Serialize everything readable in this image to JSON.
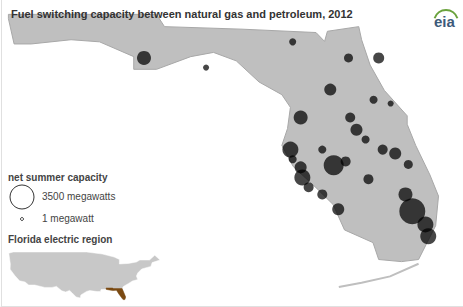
{
  "chart_data": {
    "type": "scatter",
    "title": "Fuel switching capacity between natural gas and petroleum, 2012",
    "xlim": [
      -87.73,
      -79.62
    ],
    "ylim": [
      24.1,
      31.34
    ],
    "tick_labels": false,
    "grid": false,
    "color": "#000000",
    "x": [
      -85.22,
      -84.13,
      -82.61,
      -81.63,
      -81.1,
      -81.95,
      -81.19,
      -80.89,
      -82.47,
      -81.49,
      -81.03,
      -80.81,
      -80.58,
      -81.68,
      -82.09,
      -82.65,
      -82.47,
      -82.44,
      -82.33,
      -82.61,
      -81.89,
      -82.09,
      -81.81,
      -81.33,
      -81.28,
      -80.63,
      -80.51,
      -80.28,
      -80.23,
      -81.6
    ],
    "values": [
      29.97,
      29.74,
      30.35,
      29.97,
      29.97,
      29.22,
      28.98,
      28.89,
      28.56,
      28.27,
      27.8,
      27.71,
      27.45,
      27.52,
      27.8,
      27.8,
      27.38,
      27.14,
      26.91,
      27.57,
      27.43,
      26.74,
      26.39,
      28.04,
      27.1,
      26.74,
      26.34,
      26.03,
      25.75,
      28.56
    ],
    "sizes": [
      1190,
      220,
      300,
      490,
      740,
      880,
      390,
      220,
      1190,
      880,
      610,
      880,
      490,
      610,
      390,
      1560,
      880,
      1560,
      610,
      390,
      2430,
      610,
      880,
      390,
      610,
      1190,
      4100,
      1560,
      1560,
      610
    ],
    "size_legend": {
      "title": "net summer capacity",
      "items": [
        {
          "value": 3500,
          "label": "3500 megawatts"
        },
        {
          "value": 1,
          "label": "1 megawatt"
        }
      ]
    },
    "inset": {
      "title": "Florida electric region",
      "color": "#7b4a12"
    },
    "logo": "eia"
  }
}
